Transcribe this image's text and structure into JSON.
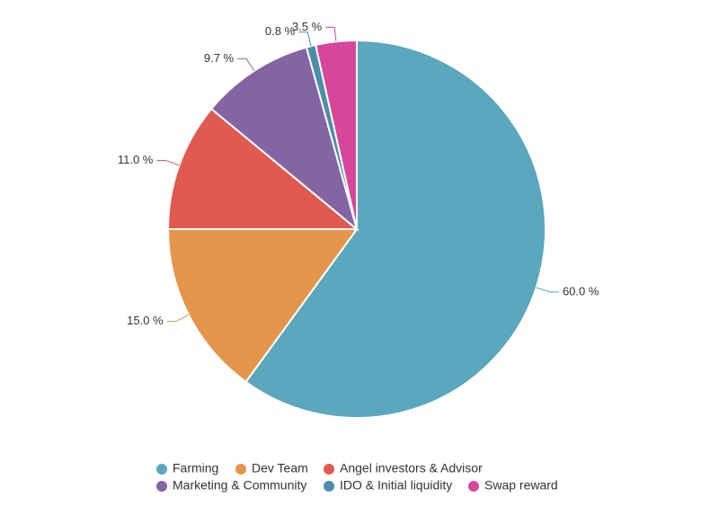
{
  "chart_data": {
    "type": "pie",
    "categories": [
      "Farming",
      "Dev Team",
      "Angel investors & Advisor",
      "Marketing & Community",
      "IDO & Initial liquidity",
      "Swap reward"
    ],
    "values": [
      60,
      15,
      11,
      9.7,
      0.8,
      3.5
    ],
    "value_labels": [
      "60.0 %",
      "15.0 %",
      "11.0 %",
      "9.7 %",
      "0.8 %",
      "3.5 %"
    ],
    "colors": [
      "#5ba7bd",
      "#e5954b",
      "#e05a4f",
      "#8464a3",
      "#4b8ea8",
      "#d6479a"
    ],
    "legend": "bottom"
  }
}
